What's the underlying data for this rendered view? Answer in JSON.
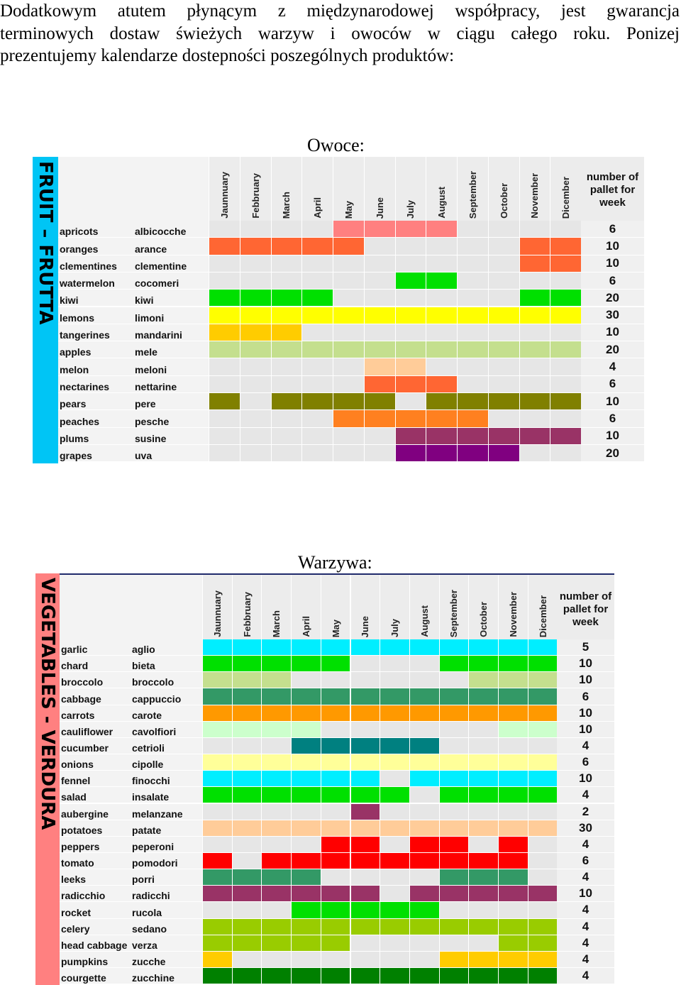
{
  "intro": {
    "line1": "Dodatkowym atutem płynącym z międzynarodowej współpracy, jest gwarancja",
    "line2": "terminowych dostaw świeżych warzyw i owoców w ciągu całego roku. Ponizej",
    "line3": "prezentujemy kalendarze dostepności poszególnych produktów:"
  },
  "fruit": {
    "title": "Owoce:",
    "side_label": "FRUIT – FRUTTA",
    "side_color": "#00c5f5",
    "months": [
      "Jaunnuary",
      "Febbruary",
      "March",
      "April",
      "May",
      "June",
      "July",
      "August",
      "September",
      "October",
      "November",
      "Dicember"
    ],
    "pallet_header": "number of pallet for week",
    "rows": [
      {
        "en": "apricots",
        "it": "albicocche",
        "pallet": "6",
        "avail": [
          0,
          0,
          0,
          0,
          1,
          1,
          1,
          1,
          0,
          0,
          0,
          0
        ],
        "color": "#ff8080"
      },
      {
        "en": "oranges",
        "it": "arance",
        "pallet": "10",
        "avail": [
          1,
          1,
          1,
          1,
          1,
          0,
          0,
          0,
          0,
          0,
          1,
          1
        ],
        "color": "#ff6633"
      },
      {
        "en": "clementines",
        "it": "clementine",
        "pallet": "10",
        "avail": [
          0,
          0,
          0,
          0,
          0,
          0,
          0,
          0,
          0,
          0,
          1,
          1
        ],
        "color": "#ff6633"
      },
      {
        "en": "watermelon",
        "it": "cocomeri",
        "pallet": "6",
        "avail": [
          0,
          0,
          0,
          0,
          0,
          0,
          1,
          1,
          0,
          0,
          0,
          0
        ],
        "color": "#00e000"
      },
      {
        "en": "kiwi",
        "it": "kiwi",
        "pallet": "20",
        "avail": [
          1,
          1,
          1,
          1,
          0,
          0,
          0,
          0,
          0,
          0,
          1,
          1
        ],
        "color": "#00e000"
      },
      {
        "en": "lemons",
        "it": "limoni",
        "pallet": "30",
        "avail": [
          1,
          1,
          1,
          1,
          1,
          1,
          1,
          1,
          1,
          1,
          1,
          1
        ],
        "color": "#ffff00"
      },
      {
        "en": "tangerines",
        "it": "mandarini",
        "pallet": "10",
        "avail": [
          1,
          1,
          1,
          0,
          0,
          0,
          0,
          0,
          0,
          0,
          0,
          0
        ],
        "color": "#ffcc00"
      },
      {
        "en": "apples",
        "it": "mele",
        "pallet": "20",
        "avail": [
          1,
          1,
          1,
          1,
          1,
          1,
          1,
          1,
          1,
          1,
          1,
          1
        ],
        "color": "#c4df8e"
      },
      {
        "en": "melon",
        "it": "meloni",
        "pallet": "4",
        "avail": [
          0,
          0,
          0,
          0,
          0,
          1,
          1,
          0,
          0,
          0,
          0,
          0
        ],
        "color": "#ffcc99"
      },
      {
        "en": "nectarines",
        "it": "nettarine",
        "pallet": "6",
        "avail": [
          0,
          0,
          0,
          0,
          0,
          1,
          1,
          1,
          0,
          0,
          0,
          0
        ],
        "color": "#ff6633"
      },
      {
        "en": "pears",
        "it": "pere",
        "pallet": "10",
        "avail": [
          1,
          0,
          1,
          1,
          1,
          1,
          0,
          1,
          1,
          1,
          1,
          1
        ],
        "color": "#808000"
      },
      {
        "en": "peaches",
        "it": "pesche",
        "pallet": "6",
        "avail": [
          0,
          0,
          0,
          0,
          1,
          1,
          1,
          1,
          1,
          0,
          0,
          0
        ],
        "color": "#ff8020"
      },
      {
        "en": "plums",
        "it": "susine",
        "pallet": "10",
        "avail": [
          0,
          0,
          0,
          0,
          0,
          0,
          1,
          1,
          1,
          1,
          1,
          1
        ],
        "color": "#993366"
      },
      {
        "en": "grapes",
        "it": "uva",
        "pallet": "20",
        "avail": [
          0,
          0,
          0,
          0,
          0,
          0,
          1,
          1,
          1,
          1,
          0,
          0
        ],
        "color": "#800080"
      }
    ]
  },
  "veg": {
    "title": "Warzywa:",
    "side_label": "VEGETABLES - VERDURA",
    "side_color": "#ff8080",
    "months": [
      "Jaunnuary",
      "Febbruary",
      "March",
      "April",
      "May",
      "June",
      "July",
      "August",
      "September",
      "October",
      "November",
      "Dicember"
    ],
    "pallet_header": "number of pallet for week",
    "rows": [
      {
        "en": "garlic",
        "it": "aglio",
        "pallet": "5",
        "avail": [
          1,
          1,
          1,
          1,
          1,
          1,
          1,
          1,
          1,
          1,
          1,
          1
        ],
        "color": "#00eeff"
      },
      {
        "en": "chard",
        "it": "bieta",
        "pallet": "10",
        "avail": [
          1,
          1,
          1,
          1,
          1,
          0,
          0,
          0,
          1,
          1,
          1,
          1
        ],
        "color": "#00e000"
      },
      {
        "en": "broccolo",
        "it": "broccolo",
        "pallet": "10",
        "avail": [
          1,
          1,
          1,
          0,
          0,
          0,
          0,
          0,
          0,
          1,
          1,
          1
        ],
        "color": "#c4df8e"
      },
      {
        "en": "cabbage",
        "it": "cappuccio",
        "pallet": "6",
        "avail": [
          1,
          1,
          1,
          1,
          1,
          1,
          1,
          1,
          1,
          1,
          1,
          1
        ],
        "color": "#339966"
      },
      {
        "en": "carrots",
        "it": "carote",
        "pallet": "10",
        "avail": [
          1,
          1,
          1,
          1,
          1,
          1,
          1,
          1,
          1,
          1,
          1,
          1
        ],
        "color": "#ff9900"
      },
      {
        "en": "cauliflower",
        "it": "cavolfiori",
        "pallet": "10",
        "avail": [
          1,
          1,
          1,
          1,
          0,
          0,
          0,
          0,
          0,
          0,
          1,
          1
        ],
        "color": "#ccffcc"
      },
      {
        "en": "cucumber",
        "it": "cetrioli",
        "pallet": "4",
        "avail": [
          0,
          0,
          0,
          1,
          1,
          1,
          1,
          1,
          0,
          0,
          0,
          0
        ],
        "color": "#008080"
      },
      {
        "en": "onions",
        "it": "cipolle",
        "pallet": "6",
        "avail": [
          1,
          1,
          1,
          1,
          1,
          1,
          1,
          1,
          1,
          1,
          1,
          1
        ],
        "color": "#ffff99"
      },
      {
        "en": "fennel",
        "it": "finocchi",
        "pallet": "10",
        "avail": [
          1,
          1,
          1,
          1,
          1,
          1,
          0,
          1,
          1,
          1,
          1,
          1
        ],
        "color": "#00eeff"
      },
      {
        "en": "salad",
        "it": "insalate",
        "pallet": "4",
        "avail": [
          1,
          1,
          1,
          1,
          1,
          1,
          1,
          0,
          1,
          1,
          1,
          1
        ],
        "color": "#00e000"
      },
      {
        "en": "aubergine",
        "it": "melanzane",
        "pallet": "2",
        "avail": [
          0,
          0,
          0,
          0,
          0,
          1,
          0,
          0,
          0,
          0,
          0,
          0
        ],
        "color": "#993366"
      },
      {
        "en": "potatoes",
        "it": "patate",
        "pallet": "30",
        "avail": [
          1,
          1,
          1,
          1,
          1,
          1,
          1,
          1,
          1,
          1,
          1,
          1
        ],
        "color": "#ffcc99"
      },
      {
        "en": "peppers",
        "it": "peperoni",
        "pallet": "4",
        "avail": [
          0,
          0,
          0,
          0,
          1,
          1,
          0,
          1,
          1,
          0,
          1,
          0
        ],
        "color": "#ff0000"
      },
      {
        "en": "tomato",
        "it": "pomodori",
        "pallet": "6",
        "avail": [
          1,
          0,
          1,
          1,
          1,
          1,
          1,
          1,
          1,
          1,
          1,
          0
        ],
        "color": "#ff0000"
      },
      {
        "en": "leeks",
        "it": "porri",
        "pallet": "4",
        "avail": [
          1,
          1,
          1,
          1,
          0,
          0,
          0,
          0,
          1,
          1,
          1,
          0
        ],
        "color": "#339966"
      },
      {
        "en": "radicchio",
        "it": "radicchi",
        "pallet": "10",
        "avail": [
          1,
          1,
          1,
          1,
          1,
          1,
          0,
          1,
          1,
          1,
          1,
          1
        ],
        "color": "#993366"
      },
      {
        "en": "rocket",
        "it": "rucola",
        "pallet": "4",
        "avail": [
          0,
          0,
          0,
          1,
          1,
          1,
          1,
          1,
          0,
          0,
          0,
          0
        ],
        "color": "#00e000"
      },
      {
        "en": "celery",
        "it": "sedano",
        "pallet": "4",
        "avail": [
          1,
          1,
          1,
          1,
          1,
          1,
          1,
          1,
          1,
          1,
          1,
          1
        ],
        "color": "#99cc00"
      },
      {
        "en": "head cabbage",
        "it": "verza",
        "pallet": "4",
        "avail": [
          1,
          1,
          1,
          1,
          1,
          0,
          0,
          0,
          0,
          0,
          1,
          1
        ],
        "color": "#99cc00"
      },
      {
        "en": "pumpkins",
        "it": "zucche",
        "pallet": "4",
        "avail": [
          1,
          0,
          0,
          0,
          0,
          0,
          0,
          0,
          1,
          1,
          1,
          1
        ],
        "color": "#ffcc00"
      },
      {
        "en": "courgette",
        "it": "zucchine",
        "pallet": "4",
        "avail": [
          1,
          1,
          1,
          1,
          1,
          1,
          1,
          1,
          1,
          1,
          1,
          1
        ],
        "color": "#008000"
      }
    ]
  },
  "colors": {
    "empty_cell": "#e6e6e6",
    "header_bg": "#ececec",
    "border": "#ffffff"
  }
}
